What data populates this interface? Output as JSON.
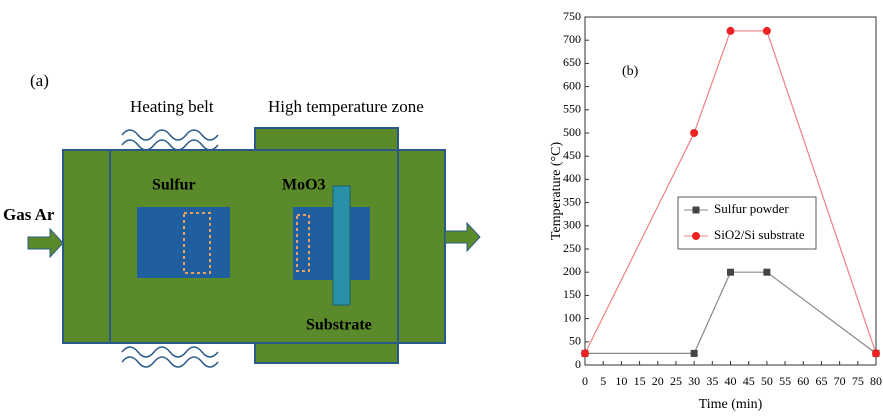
{
  "diagram": {
    "panel_label": "(a)",
    "heating_belt": "Heating belt",
    "high_zone": "High temperature zone",
    "sulfur": "Sulfur",
    "moo3": "MoO3",
    "gas": "Gas Ar",
    "substrate": "Substrate"
  },
  "chart_data": {
    "type": "line",
    "title": "(b)",
    "x_label": "Time (min)",
    "y_label": "Temperature (°C)",
    "x": [
      0,
      30,
      40,
      50,
      80
    ],
    "series": [
      {
        "name": "Sulfur powder",
        "color": "#444444",
        "line_color": "#888888",
        "marker": "square",
        "values": [
          25,
          25,
          200,
          200,
          25
        ]
      },
      {
        "name": "SiO2/Si substrate",
        "color": "#ee2222",
        "line_color": "#f08080",
        "marker": "circle",
        "values": [
          25,
          500,
          720,
          720,
          25
        ]
      }
    ],
    "xlim": [
      0,
      80
    ],
    "xticks": [
      0,
      5,
      10,
      15,
      20,
      25,
      30,
      35,
      40,
      45,
      50,
      55,
      60,
      65,
      70,
      75,
      80
    ],
    "ylim": [
      0,
      750
    ],
    "yticks": [
      0,
      50,
      100,
      150,
      200,
      250,
      300,
      350,
      400,
      450,
      500,
      550,
      600,
      650,
      700,
      750
    ],
    "legend": "center"
  }
}
